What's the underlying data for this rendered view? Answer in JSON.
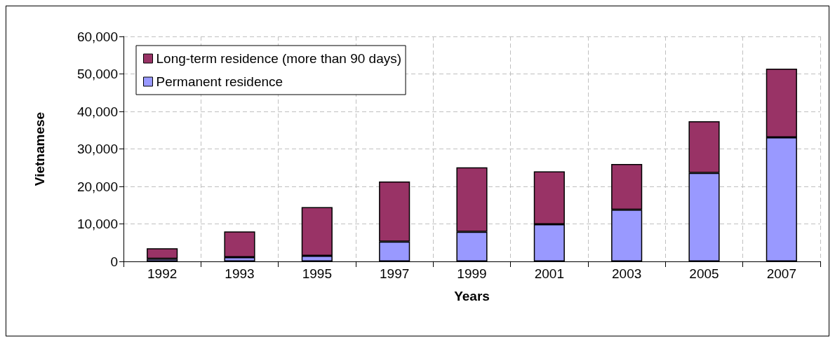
{
  "chart_data": {
    "type": "bar",
    "stacked": true,
    "xlabel": "Years",
    "ylabel": "Vietnamese",
    "categories": [
      "1992",
      "1993",
      "1995",
      "1997",
      "1999",
      "2001",
      "2003",
      "2005",
      "2007"
    ],
    "series": [
      {
        "name": "Permanent residence",
        "color": "#9999ff",
        "values": [
          700,
          1100,
          1500,
          5300,
          7900,
          9900,
          13800,
          23600,
          33100
        ]
      },
      {
        "name": "Long-term residence (more than 90 days)",
        "color": "#993366",
        "values": [
          2800,
          6900,
          13000,
          16000,
          17200,
          14100,
          12200,
          13800,
          18300
        ]
      }
    ],
    "ylim": [
      0,
      60000
    ],
    "yticks": [
      0,
      {
        "value": 10000,
        "label": "10,000"
      },
      {
        "value": 20000,
        "label": "20,000"
      },
      {
        "value": 30000,
        "label": "30,000"
      },
      {
        "value": 40000,
        "label": "40,000"
      },
      {
        "value": 50000,
        "label": "50,000"
      },
      {
        "value": 60000,
        "label": "60,000"
      }
    ],
    "grid": true,
    "legend": "top left"
  }
}
